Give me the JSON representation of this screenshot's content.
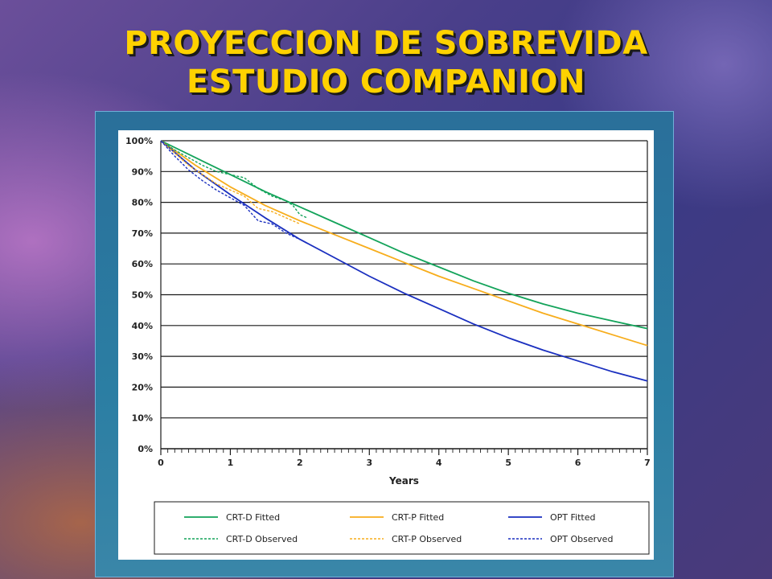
{
  "slide": {
    "title_line1": "PROYECCION DE SOBREVIDA",
    "title_line2": "ESTUDIO COMPANION"
  },
  "colors": {
    "crt_d": "#13a35a",
    "crt_p": "#f7ad1c",
    "opt": "#1a2fbf",
    "title": "#ffd200"
  },
  "chart_data": {
    "type": "line",
    "xlabel": "Years",
    "ylabel": "",
    "xlim": [
      0,
      7
    ],
    "ylim": [
      0,
      100
    ],
    "x_ticks": [
      "0",
      "1",
      "2",
      "3",
      "4",
      "5",
      "6",
      "7"
    ],
    "y_ticks": [
      "0%",
      "10%",
      "20%",
      "30%",
      "40%",
      "50%",
      "60%",
      "70%",
      "80%",
      "90%",
      "100%"
    ],
    "grid": "horizontal",
    "legend_position": "bottom",
    "series": [
      {
        "name": "CRT-D Fitted",
        "style": "solid",
        "color": "#13a35a",
        "x": [
          0,
          0.5,
          1,
          1.5,
          2,
          2.5,
          3,
          3.5,
          4,
          4.5,
          5,
          5.5,
          6,
          6.5,
          7
        ],
        "y": [
          100,
          94.5,
          89,
          83.5,
          78.5,
          73.5,
          68.5,
          63.5,
          59,
          54.5,
          50.5,
          47,
          44,
          41.5,
          39
        ]
      },
      {
        "name": "CRT-P Fitted",
        "style": "solid",
        "color": "#f7ad1c",
        "x": [
          0,
          0.5,
          1,
          1.5,
          2,
          2.5,
          3,
          3.5,
          4,
          4.5,
          5,
          5.5,
          6,
          6.5,
          7
        ],
        "y": [
          100,
          92,
          85,
          79,
          74,
          69.5,
          65,
          60.5,
          56,
          52,
          48,
          44,
          40.5,
          37,
          33.5
        ]
      },
      {
        "name": "OPT Fitted",
        "style": "solid",
        "color": "#1a2fbf",
        "x": [
          0,
          0.5,
          1,
          1.5,
          2,
          2.5,
          3,
          3.5,
          4,
          4.5,
          5,
          5.5,
          6,
          6.5,
          7
        ],
        "y": [
          100,
          90.5,
          82.5,
          75,
          68,
          62,
          56,
          50.5,
          45.5,
          40.5,
          36,
          32,
          28.5,
          25,
          22
        ]
      },
      {
        "name": "CRT-D Observed",
        "style": "dashed",
        "color": "#13a35a",
        "x": [
          0,
          0.2,
          0.4,
          0.6,
          0.8,
          1.0,
          1.2,
          1.4,
          1.6,
          1.8,
          1.9,
          2.0,
          2.1
        ],
        "y": [
          100,
          97,
          94.5,
          92,
          90,
          89,
          88,
          84.5,
          82,
          80.5,
          79,
          76,
          75
        ]
      },
      {
        "name": "CRT-P Observed",
        "style": "dashed",
        "color": "#f7ad1c",
        "x": [
          0,
          0.2,
          0.4,
          0.6,
          0.8,
          1.0,
          1.2,
          1.4,
          1.6,
          1.8,
          2.0
        ],
        "y": [
          100,
          96,
          92,
          89,
          86,
          84,
          82,
          78,
          77,
          75,
          73
        ]
      },
      {
        "name": "OPT Observed",
        "style": "dashed",
        "color": "#1a2fbf",
        "x": [
          0,
          0.2,
          0.4,
          0.6,
          0.8,
          1.0,
          1.2,
          1.4,
          1.6,
          1.8,
          2.0
        ],
        "y": [
          100,
          95,
          90.5,
          87,
          84,
          81.5,
          79,
          74,
          73,
          70,
          68
        ]
      }
    ]
  }
}
